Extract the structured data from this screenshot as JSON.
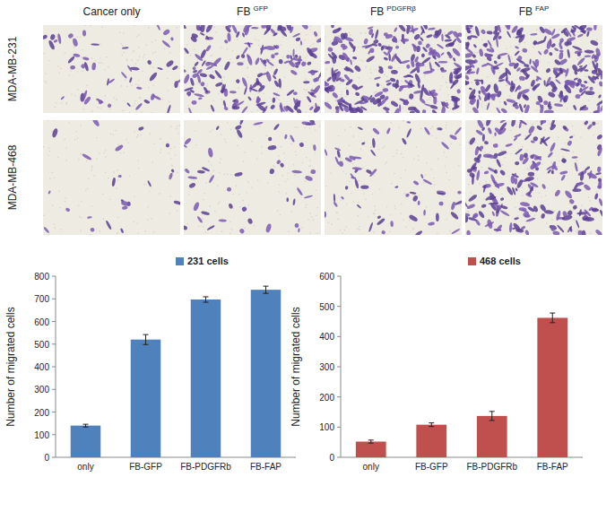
{
  "figure": {
    "column_labels": [
      {
        "text": "Cancer only"
      },
      {
        "text": "FB",
        "superscript": "GFP"
      },
      {
        "text": "FB",
        "superscript": "PDGFRβ"
      },
      {
        "text": "FB",
        "superscript": "FAP"
      }
    ],
    "row_labels": [
      "MDA-MB-231",
      "MDA-MB-468"
    ]
  },
  "chart_data": [
    {
      "type": "bar",
      "categories": [
        "only",
        "FB-GFP",
        "FB-PDGFRb",
        "FB-FAP"
      ],
      "series": [
        {
          "name": "231 cells",
          "color": "#4f81bd",
          "values": [
            140,
            520,
            697,
            740
          ],
          "errors": [
            6,
            22,
            12,
            16
          ]
        }
      ],
      "y_label": "Number of migrated cells",
      "ylim": [
        0,
        800
      ],
      "yticks": [
        0,
        100,
        200,
        300,
        400,
        500,
        600,
        700,
        800
      ],
      "grid": false,
      "legend": "top"
    },
    {
      "type": "bar",
      "categories": [
        "only",
        "FB-GFP",
        "FB-PDGFRb",
        "FB-FAP"
      ],
      "series": [
        {
          "name": "468 cells",
          "color": "#c0504d",
          "values": [
            52,
            108,
            137,
            462
          ],
          "errors": [
            5,
            6,
            15,
            16
          ]
        }
      ],
      "y_label": "Number of migrated cells",
      "ylim": [
        0,
        600
      ],
      "yticks": [
        0,
        100,
        200,
        300,
        400,
        500,
        600
      ],
      "grid": false,
      "legend": "top"
    }
  ]
}
